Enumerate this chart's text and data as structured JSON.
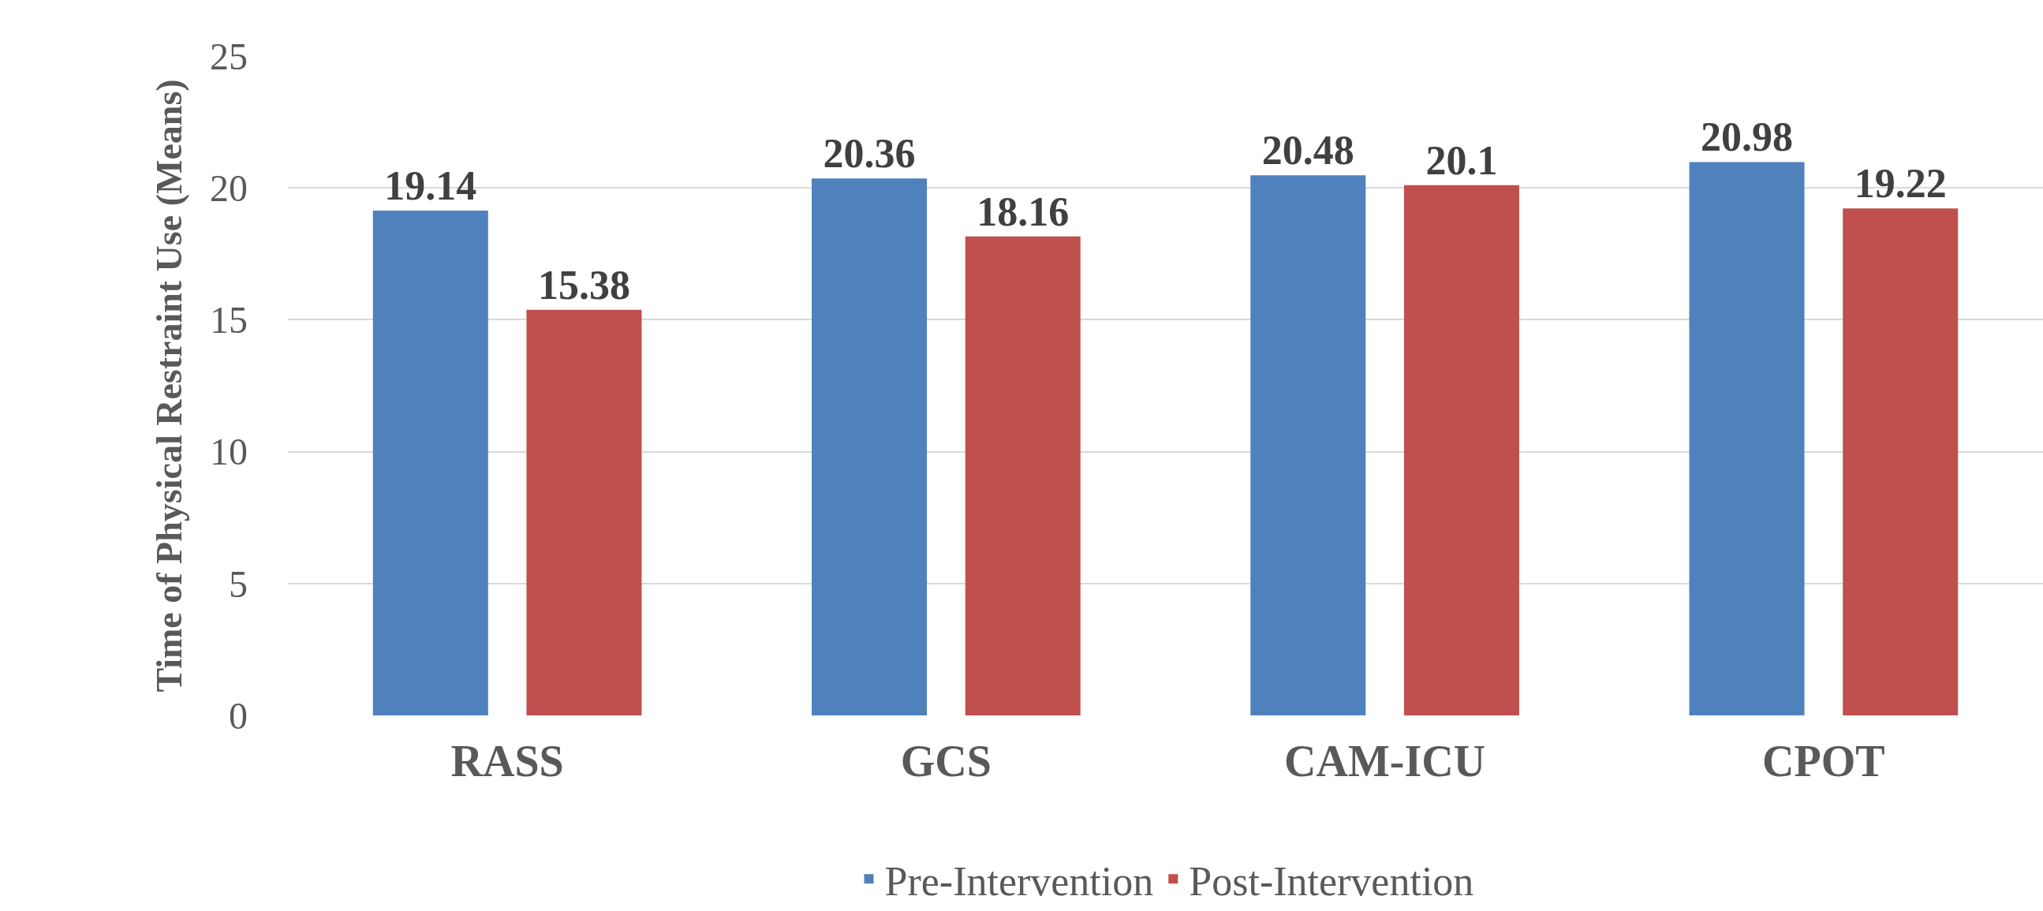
{
  "chart_data": {
    "type": "bar",
    "ylabel": "Time of Physical Restraint Use (Means)",
    "categories": [
      "RASS",
      "GCS",
      "CAM-ICU",
      "CPOT"
    ],
    "series": [
      {
        "name": "Pre-Intervention",
        "color": "#4f81bd",
        "values": [
          19.14,
          20.36,
          20.48,
          20.98
        ]
      },
      {
        "name": "Post-Intervention",
        "color": "#c0504d",
        "values": [
          15.38,
          18.16,
          20.1,
          19.22
        ]
      }
    ],
    "ylim": [
      0,
      25
    ],
    "yticks": [
      0,
      5,
      10,
      15,
      20,
      25
    ],
    "grid": "y",
    "legend": "bottom",
    "data_labels": true
  }
}
